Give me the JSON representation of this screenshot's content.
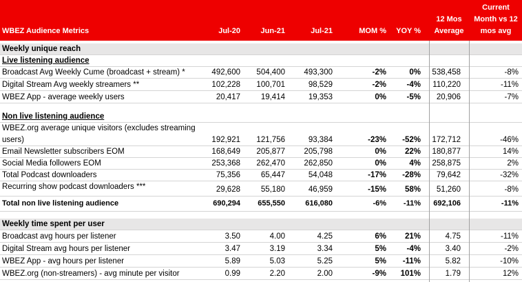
{
  "header": {
    "title": "WBEZ Audience Metrics",
    "col_jul20": "Jul-20",
    "col_jun21": "Jun-21",
    "col_jul21": "Jul-21",
    "col_mom": "MOM %",
    "col_yoy": "YOY %",
    "col_12mos_line1": "12 Mos",
    "col_12mos_line2": "Average",
    "col_curr_line1": "Current",
    "col_curr_line2": "Month vs 12",
    "col_curr_line3": "mos avg"
  },
  "sections": {
    "weekly_reach": "Weekly unique reach",
    "live": "Live listening audience",
    "non_live": "Non live listening audience",
    "time_spent": "Weekly time spent per user"
  },
  "rows": {
    "broadcast_cume": {
      "label": "Broadcast Avg Weekly Cume (broadcast + stream) *",
      "jul20": "492,600",
      "jun21": "504,400",
      "jul21": "493,300",
      "mom": "-2%",
      "yoy": "0%",
      "avg12": "538,458",
      "vs12": "-8%"
    },
    "stream_weekly": {
      "label": "Digital Stream Avg weekly streamers **",
      "jul20": "102,228",
      "jun21": "100,701",
      "jul21": "98,529",
      "mom": "-2%",
      "yoy": "-4%",
      "avg12": "110,220",
      "vs12": "-11%"
    },
    "app_weekly": {
      "label": "WBEZ App - average weekly users",
      "jul20": "20,417",
      "jun21": "19,414",
      "jul21": "19,353",
      "mom": "0%",
      "yoy": "-5%",
      "avg12": "20,906",
      "vs12": "-7%"
    },
    "org_visitors": {
      "label_line1": "WBEZ.org average unique visitors (excludes streaming",
      "label_line2": "users)",
      "jul20": "192,921",
      "jun21": "121,756",
      "jul21": "93,384",
      "mom": "-23%",
      "yoy": "-52%",
      "avg12": "172,712",
      "vs12": "-46%"
    },
    "newsletter": {
      "label": "Email Newsletter subscribers EOM",
      "jul20": "168,649",
      "jun21": "205,877",
      "jul21": "205,798",
      "mom": "0%",
      "yoy": "22%",
      "avg12": "180,877",
      "vs12": "14%"
    },
    "social": {
      "label": "Social Media followers EOM",
      "jul20": "253,368",
      "jun21": "262,470",
      "jul21": "262,850",
      "mom": "0%",
      "yoy": "4%",
      "avg12": "258,875",
      "vs12": "2%"
    },
    "podcast_total": {
      "label": "Total Podcast downloaders",
      "jul20": "75,356",
      "jun21": "65,447",
      "jul21": "54,048",
      "mom": "-17%",
      "yoy": "-28%",
      "avg12": "79,642",
      "vs12": "-32%"
    },
    "podcast_recurring": {
      "label": "Recurring show podcast downloaders ***",
      "jul20": "29,628",
      "jun21": "55,180",
      "jul21": "46,959",
      "mom": "-15%",
      "yoy": "58%",
      "avg12": "51,260",
      "vs12": "-8%"
    },
    "total_non_live": {
      "label": "Total non live listening audience",
      "jul20": "690,294",
      "jun21": "655,550",
      "jul21": "616,080",
      "mom": "-6%",
      "yoy": "-11%",
      "avg12": "692,106",
      "vs12": "-11%"
    },
    "broadcast_hours": {
      "label": "Broadcast avg hours per listener",
      "jul20": "3.50",
      "jun21": "4.00",
      "jul21": "4.25",
      "mom": "6%",
      "yoy": "21%",
      "avg12": "4.75",
      "vs12": "-11%"
    },
    "stream_hours": {
      "label": "Digital Stream avg hours per listener",
      "jul20": "3.47",
      "jun21": "3.19",
      "jul21": "3.34",
      "mom": "5%",
      "yoy": "-4%",
      "avg12": "3.40",
      "vs12": "-2%"
    },
    "app_hours": {
      "label": "WBEZ App - avg hours per listener",
      "jul20": "5.89",
      "jun21": "5.03",
      "jul21": "5.25",
      "mom": "5%",
      "yoy": "-11%",
      "avg12": "5.82",
      "vs12": "-10%"
    },
    "org_minutes": {
      "label": "WBEZ.org (non-streamers) - avg minute per visitor",
      "jul20": "0.99",
      "jun21": "2.20",
      "jul21": "2.00",
      "mom": "-9%",
      "yoy": "101%",
      "avg12": "1.79",
      "vs12": "12%"
    }
  },
  "colors": {
    "header_bg": "#ee0000",
    "header_text": "#ffffff",
    "section_bg": "#e7e6e6"
  }
}
